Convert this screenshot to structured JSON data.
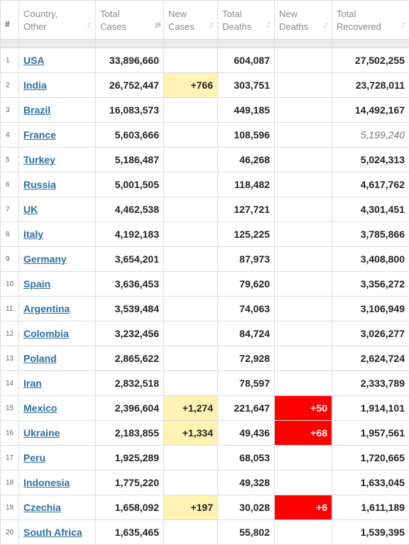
{
  "headers": {
    "num": "#",
    "country": "Country,\nOther",
    "total_cases": "Total\nCases",
    "new_cases": "New\nCases",
    "total_deaths": "Total\nDeaths",
    "new_deaths": "New\nDeaths",
    "total_recovered": "Total\nRecovered"
  },
  "sort_icons": {
    "country": "sort-inactive-icon",
    "total_cases": "sort-descending-active-icon",
    "new_cases": "sort-inactive-icon",
    "total_deaths": "sort-inactive-icon",
    "new_deaths": "sort-inactive-icon",
    "total_recovered": "sort-inactive-icon"
  },
  "colors": {
    "new_cases_highlight": "#fff3b4",
    "new_deaths_highlight": "#ff0000",
    "link": "#2d6ea6"
  },
  "rows": [
    {
      "num": "1",
      "country": "USA",
      "total_cases": "33,896,660",
      "new_cases": "",
      "total_deaths": "604,087",
      "new_deaths": "",
      "total_recovered": "27,502,255"
    },
    {
      "num": "2",
      "country": "India",
      "total_cases": "26,752,447",
      "new_cases": "+766",
      "total_deaths": "303,751",
      "new_deaths": "",
      "total_recovered": "23,728,011"
    },
    {
      "num": "3",
      "country": "Brazil",
      "total_cases": "16,083,573",
      "new_cases": "",
      "total_deaths": "449,185",
      "new_deaths": "",
      "total_recovered": "14,492,167"
    },
    {
      "num": "4",
      "country": "France",
      "total_cases": "5,603,666",
      "new_cases": "",
      "total_deaths": "108,596",
      "new_deaths": "",
      "total_recovered": "5,199,240",
      "recovered_estimated": true
    },
    {
      "num": "5",
      "country": "Turkey",
      "total_cases": "5,186,487",
      "new_cases": "",
      "total_deaths": "46,268",
      "new_deaths": "",
      "total_recovered": "5,024,313"
    },
    {
      "num": "6",
      "country": "Russia",
      "total_cases": "5,001,505",
      "new_cases": "",
      "total_deaths": "118,482",
      "new_deaths": "",
      "total_recovered": "4,617,762"
    },
    {
      "num": "7",
      "country": "UK",
      "total_cases": "4,462,538",
      "new_cases": "",
      "total_deaths": "127,721",
      "new_deaths": "",
      "total_recovered": "4,301,451"
    },
    {
      "num": "8",
      "country": "Italy",
      "total_cases": "4,192,183",
      "new_cases": "",
      "total_deaths": "125,225",
      "new_deaths": "",
      "total_recovered": "3,785,866"
    },
    {
      "num": "9",
      "country": "Germany",
      "total_cases": "3,654,201",
      "new_cases": "",
      "total_deaths": "87,973",
      "new_deaths": "",
      "total_recovered": "3,408,800"
    },
    {
      "num": "10",
      "country": "Spain",
      "total_cases": "3,636,453",
      "new_cases": "",
      "total_deaths": "79,620",
      "new_deaths": "",
      "total_recovered": "3,356,272"
    },
    {
      "num": "11",
      "country": "Argentina",
      "total_cases": "3,539,484",
      "new_cases": "",
      "total_deaths": "74,063",
      "new_deaths": "",
      "total_recovered": "3,106,949"
    },
    {
      "num": "12",
      "country": "Colombia",
      "total_cases": "3,232,456",
      "new_cases": "",
      "total_deaths": "84,724",
      "new_deaths": "",
      "total_recovered": "3,026,277"
    },
    {
      "num": "13",
      "country": "Poland",
      "total_cases": "2,865,622",
      "new_cases": "",
      "total_deaths": "72,928",
      "new_deaths": "",
      "total_recovered": "2,624,724"
    },
    {
      "num": "14",
      "country": "Iran",
      "total_cases": "2,832,518",
      "new_cases": "",
      "total_deaths": "78,597",
      "new_deaths": "",
      "total_recovered": "2,333,789"
    },
    {
      "num": "15",
      "country": "Mexico",
      "total_cases": "2,396,604",
      "new_cases": "+1,274",
      "total_deaths": "221,647",
      "new_deaths": "+50",
      "total_recovered": "1,914,101"
    },
    {
      "num": "16",
      "country": "Ukraine",
      "total_cases": "2,183,855",
      "new_cases": "+1,334",
      "total_deaths": "49,436",
      "new_deaths": "+68",
      "total_recovered": "1,957,561"
    },
    {
      "num": "17",
      "country": "Peru",
      "total_cases": "1,925,289",
      "new_cases": "",
      "total_deaths": "68,053",
      "new_deaths": "",
      "total_recovered": "1,720,665"
    },
    {
      "num": "18",
      "country": "Indonesia",
      "total_cases": "1,775,220",
      "new_cases": "",
      "total_deaths": "49,328",
      "new_deaths": "",
      "total_recovered": "1,633,045"
    },
    {
      "num": "19",
      "country": "Czechia",
      "total_cases": "1,658,092",
      "new_cases": "+197",
      "total_deaths": "30,028",
      "new_deaths": "+6",
      "total_recovered": "1,611,189"
    },
    {
      "num": "20",
      "country": "South Africa",
      "total_cases": "1,635,465",
      "new_cases": "",
      "total_deaths": "55,802",
      "new_deaths": "",
      "total_recovered": "1,539,395"
    }
  ]
}
